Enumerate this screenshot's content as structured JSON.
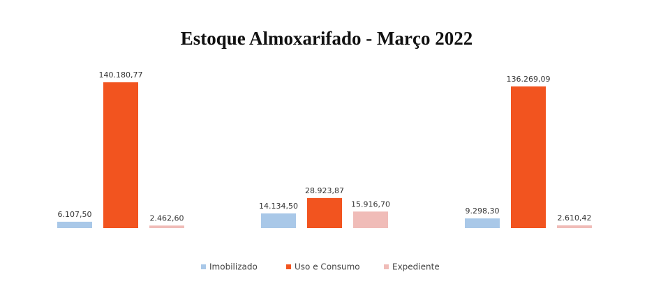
{
  "chart_data": {
    "type": "bar",
    "title": "Estoque Almoxarifado  - Março 2022",
    "categories": [
      null,
      null,
      null
    ],
    "series": [
      {
        "name": "Imobilizado",
        "color": "#a9c8e8",
        "values": [
          6107.5,
          14134.5,
          9298.3
        ],
        "value_labels": [
          "6.107,50",
          "14.134,50",
          "9.298,30"
        ]
      },
      {
        "name": "Uso e Consumo",
        "color": "#f2541f",
        "values": [
          140180.77,
          28923.87,
          136269.09
        ],
        "value_labels": [
          "140.180,77",
          "28.923,87",
          "136.269,09"
        ]
      },
      {
        "name": "Expediente",
        "color": "#f0bcb8",
        "values": [
          2462.6,
          15916.7,
          2610.42
        ],
        "value_labels": [
          "2.462,60",
          "15.916,70",
          "2.610,42"
        ]
      }
    ],
    "legend": "bottom"
  }
}
